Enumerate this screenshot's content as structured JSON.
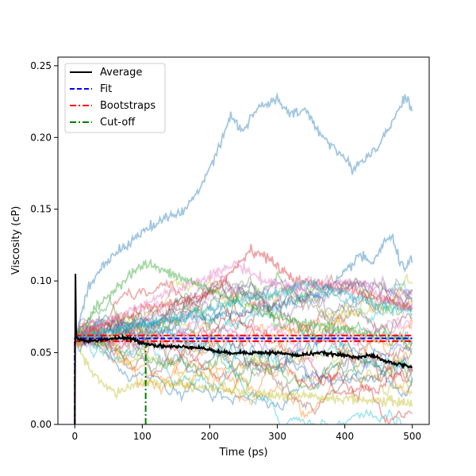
{
  "chart_data": {
    "type": "line",
    "title": "",
    "xlabel": "Time (ps)",
    "ylabel": "Viscosity (cP)",
    "xlim": [
      -25,
      525
    ],
    "ylim": [
      0,
      0.256
    ],
    "xticks": [
      0,
      100,
      200,
      300,
      400,
      500
    ],
    "xtick_labels": [
      "0",
      "100",
      "200",
      "300",
      "400",
      "500"
    ],
    "yticks": [
      0,
      0.05,
      0.1,
      0.15,
      0.2,
      0.25
    ],
    "ytick_labels": [
      "0.00",
      "0.05",
      "0.10",
      "0.15",
      "0.20",
      "0.25"
    ],
    "grid": false,
    "legend_position": "top-left",
    "legend": [
      {
        "label": "Average",
        "color": "#000000",
        "style": "solid"
      },
      {
        "label": "Fit",
        "color": "#0000ff",
        "style": "dashed"
      },
      {
        "label": "Bootstraps",
        "color": "#ff0000",
        "style": "dashdot"
      },
      {
        "label": "Cut-off",
        "color": "#008000",
        "style": "dashdot"
      }
    ],
    "average": {
      "name": "Average",
      "color": "#000000",
      "x": [
        0,
        1,
        2,
        5,
        10,
        20,
        40,
        60,
        80,
        100,
        120,
        150,
        180,
        200,
        220,
        250,
        280,
        300,
        330,
        360,
        380,
        400,
        420,
        440,
        460,
        480,
        500
      ],
      "y": [
        0.0,
        0.105,
        0.062,
        0.059,
        0.059,
        0.058,
        0.059,
        0.06,
        0.06,
        0.057,
        0.055,
        0.054,
        0.054,
        0.052,
        0.05,
        0.05,
        0.05,
        0.05,
        0.048,
        0.05,
        0.049,
        0.048,
        0.047,
        0.048,
        0.044,
        0.042,
        0.04
      ]
    },
    "fit": {
      "name": "Fit",
      "color": "#0000ff",
      "x": [
        0,
        500
      ],
      "y": [
        0.06,
        0.06
      ]
    },
    "bootstraps": {
      "name": "Bootstraps",
      "color": "#ff0000",
      "x": [
        0,
        500
      ],
      "y_upper": 0.062,
      "y_lower": 0.058
    },
    "cutoff": {
      "name": "Cut-off",
      "color": "#008000",
      "x": 105,
      "y_range": [
        0,
        0.06
      ]
    },
    "runs": {
      "count": 30,
      "colors": [
        "#1f77b4",
        "#ff7f0e",
        "#2ca02c",
        "#d62728",
        "#9467bd",
        "#8c564b",
        "#e377c2",
        "#7f7f7f",
        "#bcbd22",
        "#17becf"
      ],
      "opacity": 0.4,
      "highlighted": [
        {
          "color": "#1f77b4",
          "x": [
            0,
            20,
            40,
            60,
            80,
            100,
            120,
            140,
            160,
            180,
            200,
            215,
            230,
            250,
            270,
            290,
            300,
            320,
            340,
            360,
            380,
            400,
            410,
            430,
            450,
            470,
            490,
            500
          ],
          "y": [
            0.06,
            0.095,
            0.11,
            0.12,
            0.125,
            0.135,
            0.14,
            0.145,
            0.148,
            0.16,
            0.18,
            0.195,
            0.215,
            0.205,
            0.22,
            0.225,
            0.226,
            0.215,
            0.22,
            0.205,
            0.195,
            0.185,
            0.178,
            0.185,
            0.195,
            0.21,
            0.23,
            0.218
          ]
        },
        {
          "color": "#1f77b4",
          "x": [
            0,
            100,
            200,
            300,
            350,
            380,
            400,
            420,
            440,
            460,
            470,
            480,
            490,
            500
          ],
          "y": [
            0.06,
            0.07,
            0.075,
            0.082,
            0.09,
            0.095,
            0.105,
            0.118,
            0.112,
            0.128,
            0.13,
            0.115,
            0.11,
            0.115
          ]
        },
        {
          "color": "#d62728",
          "x": [
            0,
            50,
            100,
            150,
            200,
            230,
            260,
            280,
            300,
            330,
            360,
            400,
            450,
            500
          ],
          "y": [
            0.06,
            0.07,
            0.08,
            0.085,
            0.09,
            0.105,
            0.122,
            0.118,
            0.11,
            0.1,
            0.098,
            0.095,
            0.088,
            0.082
          ]
        },
        {
          "color": "#e377c2",
          "x": [
            0,
            60,
            120,
            180,
            220,
            240,
            280,
            320,
            380,
            420,
            460,
            500
          ],
          "y": [
            0.06,
            0.075,
            0.088,
            0.1,
            0.108,
            0.112,
            0.1,
            0.095,
            0.098,
            0.1,
            0.088,
            0.08
          ]
        },
        {
          "color": "#2ca02c",
          "x": [
            0,
            30,
            60,
            90,
            110,
            140,
            180,
            220,
            260,
            300,
            350,
            400,
            450,
            500
          ],
          "y": [
            0.06,
            0.08,
            0.095,
            0.108,
            0.112,
            0.105,
            0.098,
            0.09,
            0.082,
            0.075,
            0.07,
            0.066,
            0.062,
            0.058
          ]
        },
        {
          "color": "#17becf",
          "x": [
            0,
            80,
            160,
            240,
            300,
            340,
            380,
            420,
            460,
            500
          ],
          "y": [
            0.06,
            0.068,
            0.075,
            0.085,
            0.092,
            0.098,
            0.095,
            0.088,
            0.082,
            0.078
          ]
        },
        {
          "color": "#bcbd22",
          "x": [
            0,
            20,
            40,
            60,
            100,
            150,
            200,
            250,
            300,
            400,
            500
          ],
          "y": [
            0.06,
            0.04,
            0.028,
            0.022,
            0.03,
            0.028,
            0.025,
            0.022,
            0.02,
            0.018,
            0.015
          ]
        }
      ]
    }
  }
}
